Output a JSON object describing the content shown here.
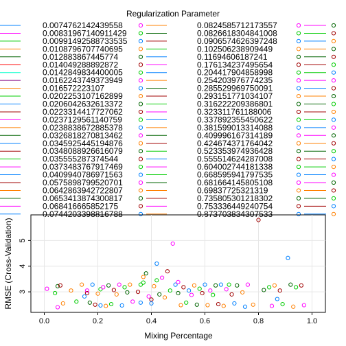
{
  "chart_data": {
    "type": "scatter",
    "legend_title": "Regularization Parameter",
    "xlabel": "Mixing Percentage",
    "ylabel": "RMSE (Cross-Validation)",
    "xlim": [
      -0.05,
      1.05
    ],
    "ylim": [
      2.2,
      6.0
    ],
    "x_ticks": [
      0.0,
      0.2,
      0.4,
      0.6,
      0.8,
      1.0
    ],
    "x_tick_labels": [
      "0.0",
      "0.2",
      "0.4",
      "0.6",
      "0.8",
      "1.0"
    ],
    "y_ticks": [
      3,
      4,
      5
    ],
    "y_tick_labels": [
      "3",
      "4",
      "5"
    ],
    "grid": true,
    "legend_placement": "top",
    "legend_columns": [
      {
        "items": [
          {
            "label": "0.0074762142439558",
            "color": "#0080ff"
          },
          {
            "label": "0.00831967140911429",
            "color": "#ff00ff"
          },
          {
            "label": "0.00991492588733535",
            "color": "#00cc00"
          },
          {
            "label": "0.0108796707740695",
            "color": "#ff8000"
          },
          {
            "label": "0.012883867445774",
            "color": "#006400"
          },
          {
            "label": "0.014049288892872",
            "color": "#ff0000"
          },
          {
            "label": "0.0142849834400005",
            "color": "#00ffcc"
          },
          {
            "label": "0.0162243749373949",
            "color": "#800080"
          },
          {
            "label": "0.016572223107",
            "color": "#ff8000"
          },
          {
            "label": "0.0202253107162899",
            "color": "#00cc00"
          },
          {
            "label": "0.0206042632613372",
            "color": "#0080ff"
          },
          {
            "label": "0.0223314417727062",
            "color": "#a00000"
          },
          {
            "label": "0.0237129561140759",
            "color": "#ff00ff"
          },
          {
            "label": "0.0238838672885378",
            "color": "#ff8000"
          },
          {
            "label": "0.0326818270813462",
            "color": "#006400"
          },
          {
            "label": "0.0345925445194876",
            "color": "#0080ff"
          },
          {
            "label": "0.0348088926616079",
            "color": "#a00000"
          },
          {
            "label": "0.035555287374544",
            "color": "#00cc00"
          },
          {
            "label": "0.0373483767917469",
            "color": "#ff00ff"
          },
          {
            "label": "0.0409940786971563",
            "color": "#0080ff"
          },
          {
            "label": "0.0575898799520701",
            "color": "#a00000"
          },
          {
            "label": "0.0642863942722807",
            "color": "#ff8000"
          },
          {
            "label": "0.0653413874300817",
            "color": "#006400"
          },
          {
            "label": "0.068416665852175",
            "color": "#ff00ff"
          },
          {
            "label": "0.0744203398816788",
            "color": "#0080ff"
          }
        ]
      },
      {
        "items": [
          {
            "label": "0.0824585712173557",
            "color": "#ff8000"
          },
          {
            "label": "0.0826618304841008",
            "color": "#006400"
          },
          {
            "label": "0.0906574626397248",
            "color": "#a00000"
          },
          {
            "label": "0.102506238909449",
            "color": "#00cc00"
          },
          {
            "label": "0.11694606187241",
            "color": "#0080ff"
          },
          {
            "label": "0.176134237495654",
            "color": "#ff00ff"
          },
          {
            "label": "0.204417904858998",
            "color": "#0080ff"
          },
          {
            "label": "0.254203976774235",
            "color": "#ff8000"
          },
          {
            "label": "0.285529969750091",
            "color": "#006400"
          },
          {
            "label": "0.293151771034107",
            "color": "#a00000"
          },
          {
            "label": "0.316222209386801",
            "color": "#00cc00"
          },
          {
            "label": "0.323311761188006",
            "color": "#ff00ff"
          },
          {
            "label": "0.337892355450622",
            "color": "#0080ff"
          },
          {
            "label": "0.381599013314088",
            "color": "#ff8000"
          },
          {
            "label": "0.409996167314189",
            "color": "#006400"
          },
          {
            "label": "0.424674371764042",
            "color": "#a00000"
          },
          {
            "label": "0.523353974936428",
            "color": "#00cc00"
          },
          {
            "label": "0.555514624287008",
            "color": "#0080ff"
          },
          {
            "label": "0.604002744181338",
            "color": "#ff00ff"
          },
          {
            "label": "0.668595941797535",
            "color": "#00cc00"
          },
          {
            "label": "0.681664145805108",
            "color": "#006400"
          },
          {
            "label": "0.69837725321319",
            "color": "#ff8000"
          },
          {
            "label": "0.735805301218302",
            "color": "#a00000"
          },
          {
            "label": "0.753336449240754",
            "color": "#ff00ff"
          },
          {
            "label": "0.873703834307533",
            "color": "#ff8000"
          }
        ]
      }
    ],
    "third_column_color_pairs": [
      [
        "#ff00ff",
        "#006400"
      ],
      [
        "#00cc00",
        "#a00000"
      ],
      [
        "#0080ff",
        "#ff8000"
      ],
      [
        "#ff8000",
        "#006400"
      ],
      [
        "#006400",
        "#a00000"
      ],
      [
        "#a00000",
        "#00cc00"
      ],
      [
        "#00cc00",
        "#0080ff"
      ],
      [
        "#ff00ff",
        "#ff00ff"
      ],
      [
        "#0080ff",
        "#a00000"
      ],
      [
        "#ff8000",
        "#006400"
      ],
      [
        "#006400",
        "#00cc00"
      ],
      [
        "#a00000",
        "#ff8000"
      ],
      [
        "#00cc00",
        "#0080ff"
      ],
      [
        "#0080ff",
        "#ff00ff"
      ],
      [
        "#ff00ff",
        "#006400"
      ],
      [
        "#ff8000",
        "#a00000"
      ],
      [
        "#006400",
        "#00cc00"
      ],
      [
        "#a00000",
        "#0080ff"
      ],
      [
        "#00cc00",
        "#ff8000"
      ],
      [
        "#0080ff",
        "#ff00ff"
      ],
      [
        "#ff00ff",
        "#006400"
      ],
      [
        "#ff8000",
        "#a00000"
      ],
      [
        "#006400",
        "#00cc00"
      ],
      [
        "#a00000",
        "#0080ff"
      ],
      [
        "#0080ff",
        "#ff8000"
      ]
    ],
    "points": [
      {
        "x": 0.01,
        "y": 3.12,
        "color": "#ff00ff"
      },
      {
        "x": 0.04,
        "y": 2.95,
        "color": "#00cc00"
      },
      {
        "x": 0.05,
        "y": 3.22,
        "color": "#006400"
      },
      {
        "x": 0.05,
        "y": 2.4,
        "color": "#ff00ff"
      },
      {
        "x": 0.06,
        "y": 3.25,
        "color": "#a00000"
      },
      {
        "x": 0.07,
        "y": 2.55,
        "color": "#ff8000"
      },
      {
        "x": 0.1,
        "y": 3.05,
        "color": "#ff8000"
      },
      {
        "x": 0.12,
        "y": 2.62,
        "color": "#00cc00"
      },
      {
        "x": 0.14,
        "y": 3.28,
        "color": "#ff8000"
      },
      {
        "x": 0.15,
        "y": 2.82,
        "color": "#0080ff"
      },
      {
        "x": 0.16,
        "y": 2.95,
        "color": "#a00000"
      },
      {
        "x": 0.16,
        "y": 3.05,
        "color": "#ff00ff"
      },
      {
        "x": 0.17,
        "y": 2.58,
        "color": "#006400"
      },
      {
        "x": 0.18,
        "y": 3.28,
        "color": "#0080ff"
      },
      {
        "x": 0.19,
        "y": 2.5,
        "color": "#a00000"
      },
      {
        "x": 0.2,
        "y": 2.93,
        "color": "#ff8000"
      },
      {
        "x": 0.21,
        "y": 3.1,
        "color": "#00cc00"
      },
      {
        "x": 0.21,
        "y": 2.47,
        "color": "#0080ff"
      },
      {
        "x": 0.22,
        "y": 3.18,
        "color": "#ff00ff"
      },
      {
        "x": 0.23,
        "y": 2.45,
        "color": "#ff8000"
      },
      {
        "x": 0.24,
        "y": 3.25,
        "color": "#006400"
      },
      {
        "x": 0.25,
        "y": 2.52,
        "color": "#00cc00"
      },
      {
        "x": 0.26,
        "y": 3.07,
        "color": "#a00000"
      },
      {
        "x": 0.27,
        "y": 2.9,
        "color": "#ff8000"
      },
      {
        "x": 0.28,
        "y": 3.28,
        "color": "#ff00ff"
      },
      {
        "x": 0.29,
        "y": 2.47,
        "color": "#0080ff"
      },
      {
        "x": 0.3,
        "y": 3.18,
        "color": "#00cc00"
      },
      {
        "x": 0.31,
        "y": 2.98,
        "color": "#006400"
      },
      {
        "x": 0.32,
        "y": 3.28,
        "color": "#ff8000"
      },
      {
        "x": 0.33,
        "y": 2.62,
        "color": "#ff00ff"
      },
      {
        "x": 0.35,
        "y": 3.0,
        "color": "#a00000"
      },
      {
        "x": 0.36,
        "y": 3.28,
        "color": "#00cc00"
      },
      {
        "x": 0.36,
        "y": 2.58,
        "color": "#0080ff"
      },
      {
        "x": 0.37,
        "y": 3.58,
        "color": "#ff8000"
      },
      {
        "x": 0.37,
        "y": 3.36,
        "color": "#00cc00"
      },
      {
        "x": 0.38,
        "y": 3.72,
        "color": "#006400"
      },
      {
        "x": 0.39,
        "y": 2.82,
        "color": "#ff00ff"
      },
      {
        "x": 0.4,
        "y": 2.7,
        "color": "#a00000"
      },
      {
        "x": 0.4,
        "y": 2.55,
        "color": "#0080ff"
      },
      {
        "x": 0.41,
        "y": 3.22,
        "color": "#ff8000"
      },
      {
        "x": 0.42,
        "y": 4.1,
        "color": "#0080ff"
      },
      {
        "x": 0.42,
        "y": 3.45,
        "color": "#00cc00"
      },
      {
        "x": 0.43,
        "y": 2.9,
        "color": "#006400"
      },
      {
        "x": 0.44,
        "y": 3.55,
        "color": "#ff00ff"
      },
      {
        "x": 0.45,
        "y": 2.78,
        "color": "#ff8000"
      },
      {
        "x": 0.46,
        "y": 3.8,
        "color": "#a00000"
      },
      {
        "x": 0.47,
        "y": 3.05,
        "color": "#00cc00"
      },
      {
        "x": 0.48,
        "y": 4.88,
        "color": "#ff00ff"
      },
      {
        "x": 0.49,
        "y": 3.28,
        "color": "#0080ff"
      },
      {
        "x": 0.5,
        "y": 3.38,
        "color": "#ff00ff"
      },
      {
        "x": 0.5,
        "y": 2.95,
        "color": "#006400"
      },
      {
        "x": 0.51,
        "y": 2.48,
        "color": "#ff8000"
      },
      {
        "x": 0.52,
        "y": 3.18,
        "color": "#a00000"
      },
      {
        "x": 0.53,
        "y": 2.58,
        "color": "#00cc00"
      },
      {
        "x": 0.54,
        "y": 3.05,
        "color": "#0080ff"
      },
      {
        "x": 0.55,
        "y": 2.88,
        "color": "#ff00ff"
      },
      {
        "x": 0.56,
        "y": 3.25,
        "color": "#ff8000"
      },
      {
        "x": 0.57,
        "y": 2.5,
        "color": "#006400"
      },
      {
        "x": 0.58,
        "y": 3.12,
        "color": "#00cc00"
      },
      {
        "x": 0.59,
        "y": 2.95,
        "color": "#a00000"
      },
      {
        "x": 0.6,
        "y": 3.28,
        "color": "#0080ff"
      },
      {
        "x": 0.61,
        "y": 2.48,
        "color": "#ff8000"
      },
      {
        "x": 0.62,
        "y": 3.05,
        "color": "#ff00ff"
      },
      {
        "x": 0.63,
        "y": 2.88,
        "color": "#00cc00"
      },
      {
        "x": 0.64,
        "y": 3.25,
        "color": "#006400"
      },
      {
        "x": 0.65,
        "y": 2.52,
        "color": "#a00000"
      },
      {
        "x": 0.66,
        "y": 3.28,
        "color": "#0080ff"
      },
      {
        "x": 0.67,
        "y": 2.45,
        "color": "#ff8000"
      },
      {
        "x": 0.68,
        "y": 3.1,
        "color": "#ff00ff"
      },
      {
        "x": 0.69,
        "y": 3.28,
        "color": "#00cc00"
      },
      {
        "x": 0.7,
        "y": 2.9,
        "color": "#a00000"
      },
      {
        "x": 0.71,
        "y": 2.55,
        "color": "#0080ff"
      },
      {
        "x": 0.72,
        "y": 3.25,
        "color": "#006400"
      },
      {
        "x": 0.74,
        "y": 2.98,
        "color": "#ff8000"
      },
      {
        "x": 0.75,
        "y": 2.42,
        "color": "#0080ff"
      },
      {
        "x": 0.76,
        "y": 3.28,
        "color": "#ff00ff"
      },
      {
        "x": 0.78,
        "y": 2.5,
        "color": "#ff8000"
      },
      {
        "x": 0.8,
        "y": 5.8,
        "color": "#a00000"
      },
      {
        "x": 0.82,
        "y": 3.07,
        "color": "#006400"
      },
      {
        "x": 0.84,
        "y": 3.18,
        "color": "#00cc00"
      },
      {
        "x": 0.85,
        "y": 2.45,
        "color": "#ff00ff"
      },
      {
        "x": 0.86,
        "y": 3.25,
        "color": "#ff8000"
      },
      {
        "x": 0.87,
        "y": 2.72,
        "color": "#0080ff"
      },
      {
        "x": 0.88,
        "y": 3.05,
        "color": "#a00000"
      },
      {
        "x": 0.89,
        "y": 2.52,
        "color": "#00cc00"
      },
      {
        "x": 0.91,
        "y": 4.32,
        "color": "#0080ff"
      },
      {
        "x": 0.92,
        "y": 3.28,
        "color": "#006400"
      },
      {
        "x": 0.93,
        "y": 2.42,
        "color": "#ff8000"
      },
      {
        "x": 0.94,
        "y": 3.18,
        "color": "#00cc00"
      },
      {
        "x": 0.96,
        "y": 3.25,
        "color": "#a00000"
      },
      {
        "x": 0.97,
        "y": 2.48,
        "color": "#ff00ff"
      }
    ]
  }
}
